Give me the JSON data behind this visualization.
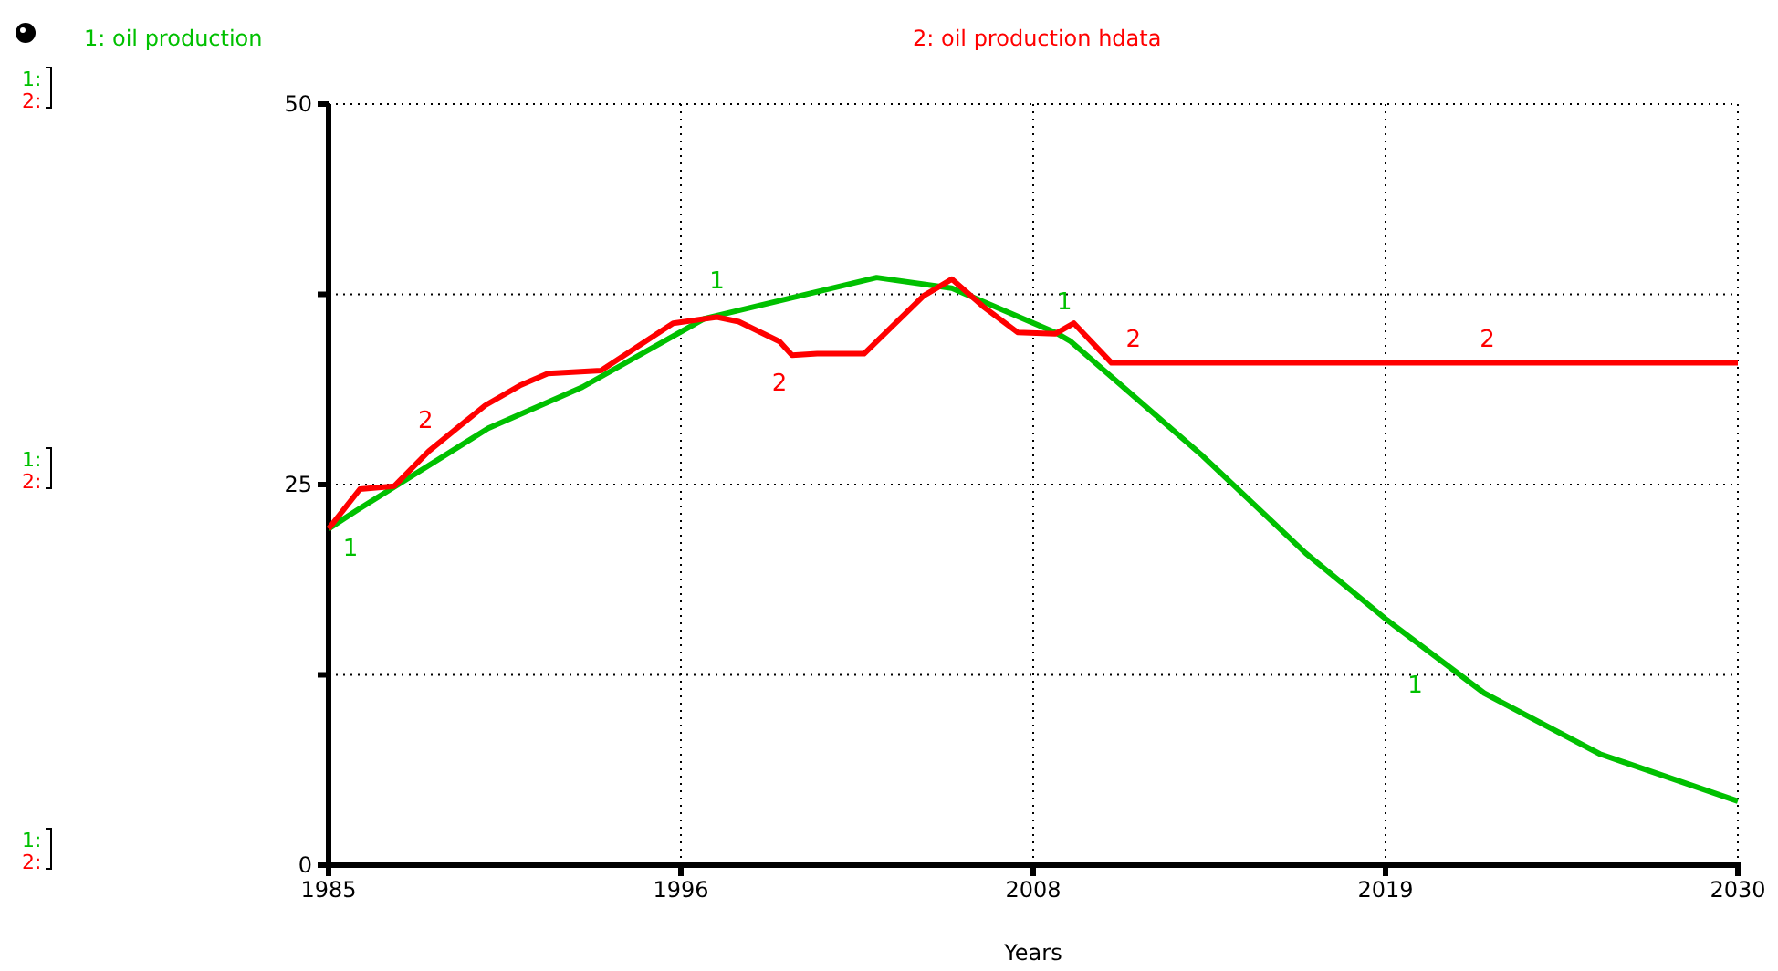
{
  "chart_data": {
    "type": "line",
    "xlabel": "Years",
    "xlim": [
      1985,
      2030
    ],
    "xticks": [
      1985,
      {
        "value": 1996.25,
        "label": "1996"
      },
      {
        "value": 2007.5,
        "label": "2008"
      },
      {
        "value": 2018.75,
        "label": "2019"
      },
      2030
    ],
    "ylim": [
      0,
      50
    ],
    "yticks": [
      0,
      {
        "value": 12.5,
        "label": null
      },
      25,
      {
        "value": 37.5,
        "label": null
      },
      50
    ],
    "grid": true,
    "legend": "top",
    "line_style": "solid",
    "series": [
      {
        "name": "1: oil production",
        "color": "#00c000",
        "x": [
          1985,
          1985.9,
          1990.1,
          1993.1,
          1997.0,
          2002.5,
          2004.9,
          2008.2,
          2008.7,
          2012.9,
          2016.2,
          2018.8,
          2021.9,
          2025.6,
          2030
        ],
        "values": [
          22.1,
          23.3,
          28.7,
          31.4,
          35.9,
          38.6,
          37.9,
          35.0,
          34.4,
          26.9,
          20.5,
          16.1,
          11.3,
          7.3,
          4.2
        ]
      },
      {
        "name": "2: oil production hdata",
        "color": "#ff0000",
        "x": [
          1985,
          1986.0,
          1987.1,
          1988.2,
          1990.0,
          1991.1,
          1992.0,
          1993.7,
          1996.0,
          1997.4,
          1998.1,
          1999.4,
          1999.8,
          2000.6,
          2002.1,
          2004.0,
          2004.9,
          2005.9,
          2007.0,
          2008.2,
          2008.8,
          2010.0,
          2030
        ],
        "values": [
          22.1,
          24.7,
          24.9,
          27.2,
          30.2,
          31.5,
          32.3,
          32.5,
          35.6,
          36.0,
          35.7,
          34.4,
          33.5,
          33.6,
          33.6,
          37.4,
          38.5,
          36.7,
          35.0,
          34.9,
          35.6,
          33.0,
          33.0
        ]
      }
    ],
    "annotations": [
      "1:",
      "2:",
      {
        "text": "1",
        "x": 1985.7,
        "y": 23.3
      },
      {
        "text": "1",
        "x": 1997.4,
        "y": 36.1
      },
      {
        "text": "1",
        "x": 2008.5,
        "y": 34.7
      },
      {
        "text": "1",
        "x": 2019.7,
        "y": 14.3
      },
      {
        "text": "2",
        "x": 1988.1,
        "y": 26.9
      },
      {
        "text": "2",
        "x": 1999.4,
        "y": 34.2
      },
      {
        "text": "2",
        "x": 2010.7,
        "y": 33.1
      },
      {
        "text": "2",
        "x": 2022.0,
        "y": 33.1
      }
    ]
  }
}
